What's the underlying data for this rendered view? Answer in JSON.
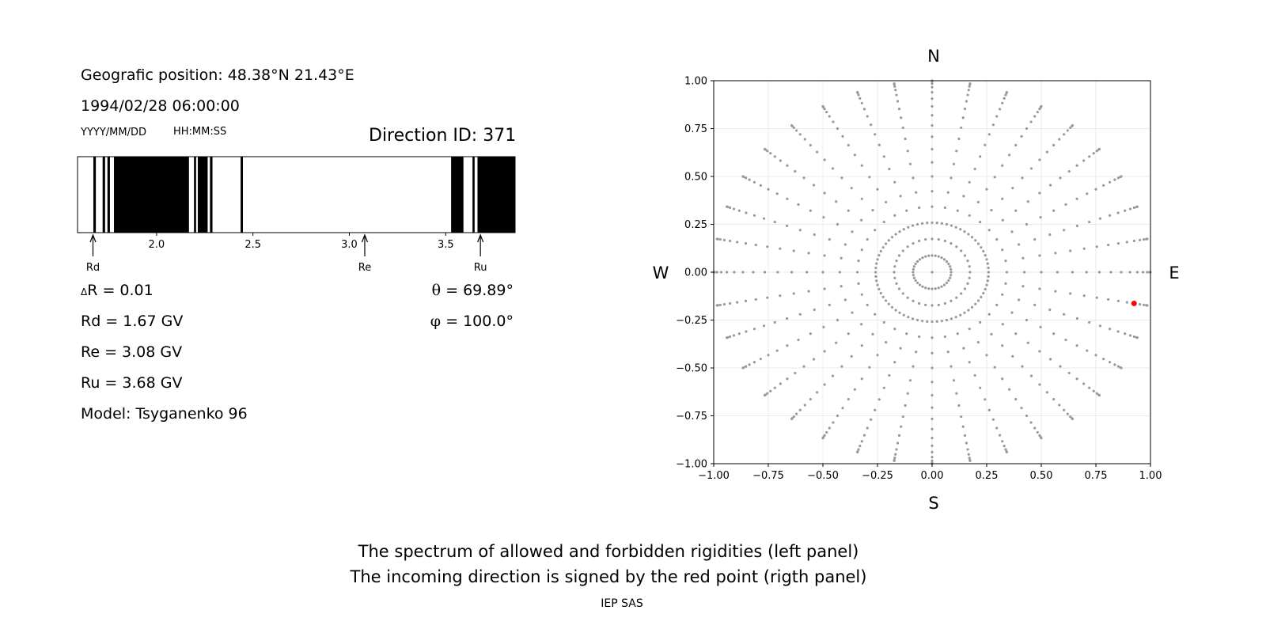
{
  "left_panel": {
    "geo_position": "Geografic position: 48.38°N 21.43°E",
    "datetime": "1994/02/28 06:00:00",
    "date_format": "YYYY/MM/DD",
    "time_format": "HH:MM:SS",
    "direction_id": "Direction ID: 371",
    "delta_r_symbol": "Δ",
    "delta_r": "R = 0.01",
    "rd": "Rd = 1.67 GV",
    "re": "Re = 3.08 GV",
    "ru": "Ru = 3.68 GV",
    "model": "Model: Tsyganenko 96",
    "theta_symbol": "θ",
    "theta": " = 69.89°",
    "phi_symbol": "φ",
    "phi": " = 100.0°"
  },
  "footer": {
    "line1": "The spectrum of allowed and forbidden rigidities (left panel)",
    "line2": "The incoming direction is signed by the red point (rigth panel)",
    "credit": "IEP SAS"
  },
  "colors": {
    "forbidden": "#000000",
    "allowed": "#ffffff",
    "grid_point": "#999999",
    "direction_point": "#ff0000",
    "grid_line": "#ebebeb"
  },
  "chart_data": [
    {
      "type": "bar",
      "name": "rigidity-spectrum",
      "xlim": [
        1.59,
        3.86
      ],
      "ticks": [
        2.0,
        2.5,
        3.0,
        3.5
      ],
      "tick_labels": [
        "2.0",
        "2.5",
        "3.0",
        "3.5"
      ],
      "forbidden_bands": [
        [
          1.672,
          1.685
        ],
        [
          1.72,
          1.733
        ],
        [
          1.745,
          1.758
        ],
        [
          1.779,
          2.168
        ],
        [
          2.194,
          2.205
        ],
        [
          2.214,
          2.265
        ],
        [
          2.277,
          2.29
        ],
        [
          2.436,
          2.448
        ],
        [
          3.528,
          3.592
        ],
        [
          3.639,
          3.65
        ],
        [
          3.665,
          3.86
        ]
      ],
      "markers": [
        {
          "label": "Rd",
          "value": 1.67
        },
        {
          "label": "Re",
          "value": 3.08
        },
        {
          "label": "Ru",
          "value": 3.68
        }
      ]
    },
    {
      "type": "scatter",
      "name": "direction-map",
      "xlim": [
        -1.0,
        1.0
      ],
      "ylim": [
        -1.0,
        1.0
      ],
      "xticks": [
        -1.0,
        -0.75,
        -0.5,
        -0.25,
        0.0,
        0.25,
        0.5,
        0.75,
        1.0
      ],
      "yticks": [
        -1.0,
        -0.75,
        -0.5,
        -0.25,
        0.0,
        0.25,
        0.5,
        0.75,
        1.0
      ],
      "xtick_labels": [
        "−1.00",
        "−0.75",
        "−0.50",
        "−0.25",
        "0.00",
        "0.25",
        "0.50",
        "0.75",
        "1.00"
      ],
      "ytick_labels": [
        "−1.00",
        "−0.75",
        "−0.50",
        "−0.25",
        "0.00",
        "0.25",
        "0.50",
        "0.75",
        "1.00"
      ],
      "grid": true,
      "compass": {
        "north": "N",
        "south": "S",
        "west": "W",
        "east": "E"
      },
      "grid_points": {
        "zenith_step_deg": 5,
        "zenith_max_deg": 90,
        "azimuth_step_deg": 10,
        "inner_ring_zenith_deg": 15,
        "inner_ring_azimuth_step_deg": 5,
        "cos_decimals": 2
      },
      "highlight": {
        "zenith_deg": 69.89,
        "azimuth_deg": 100.0
      },
      "grid_on": true
    }
  ]
}
